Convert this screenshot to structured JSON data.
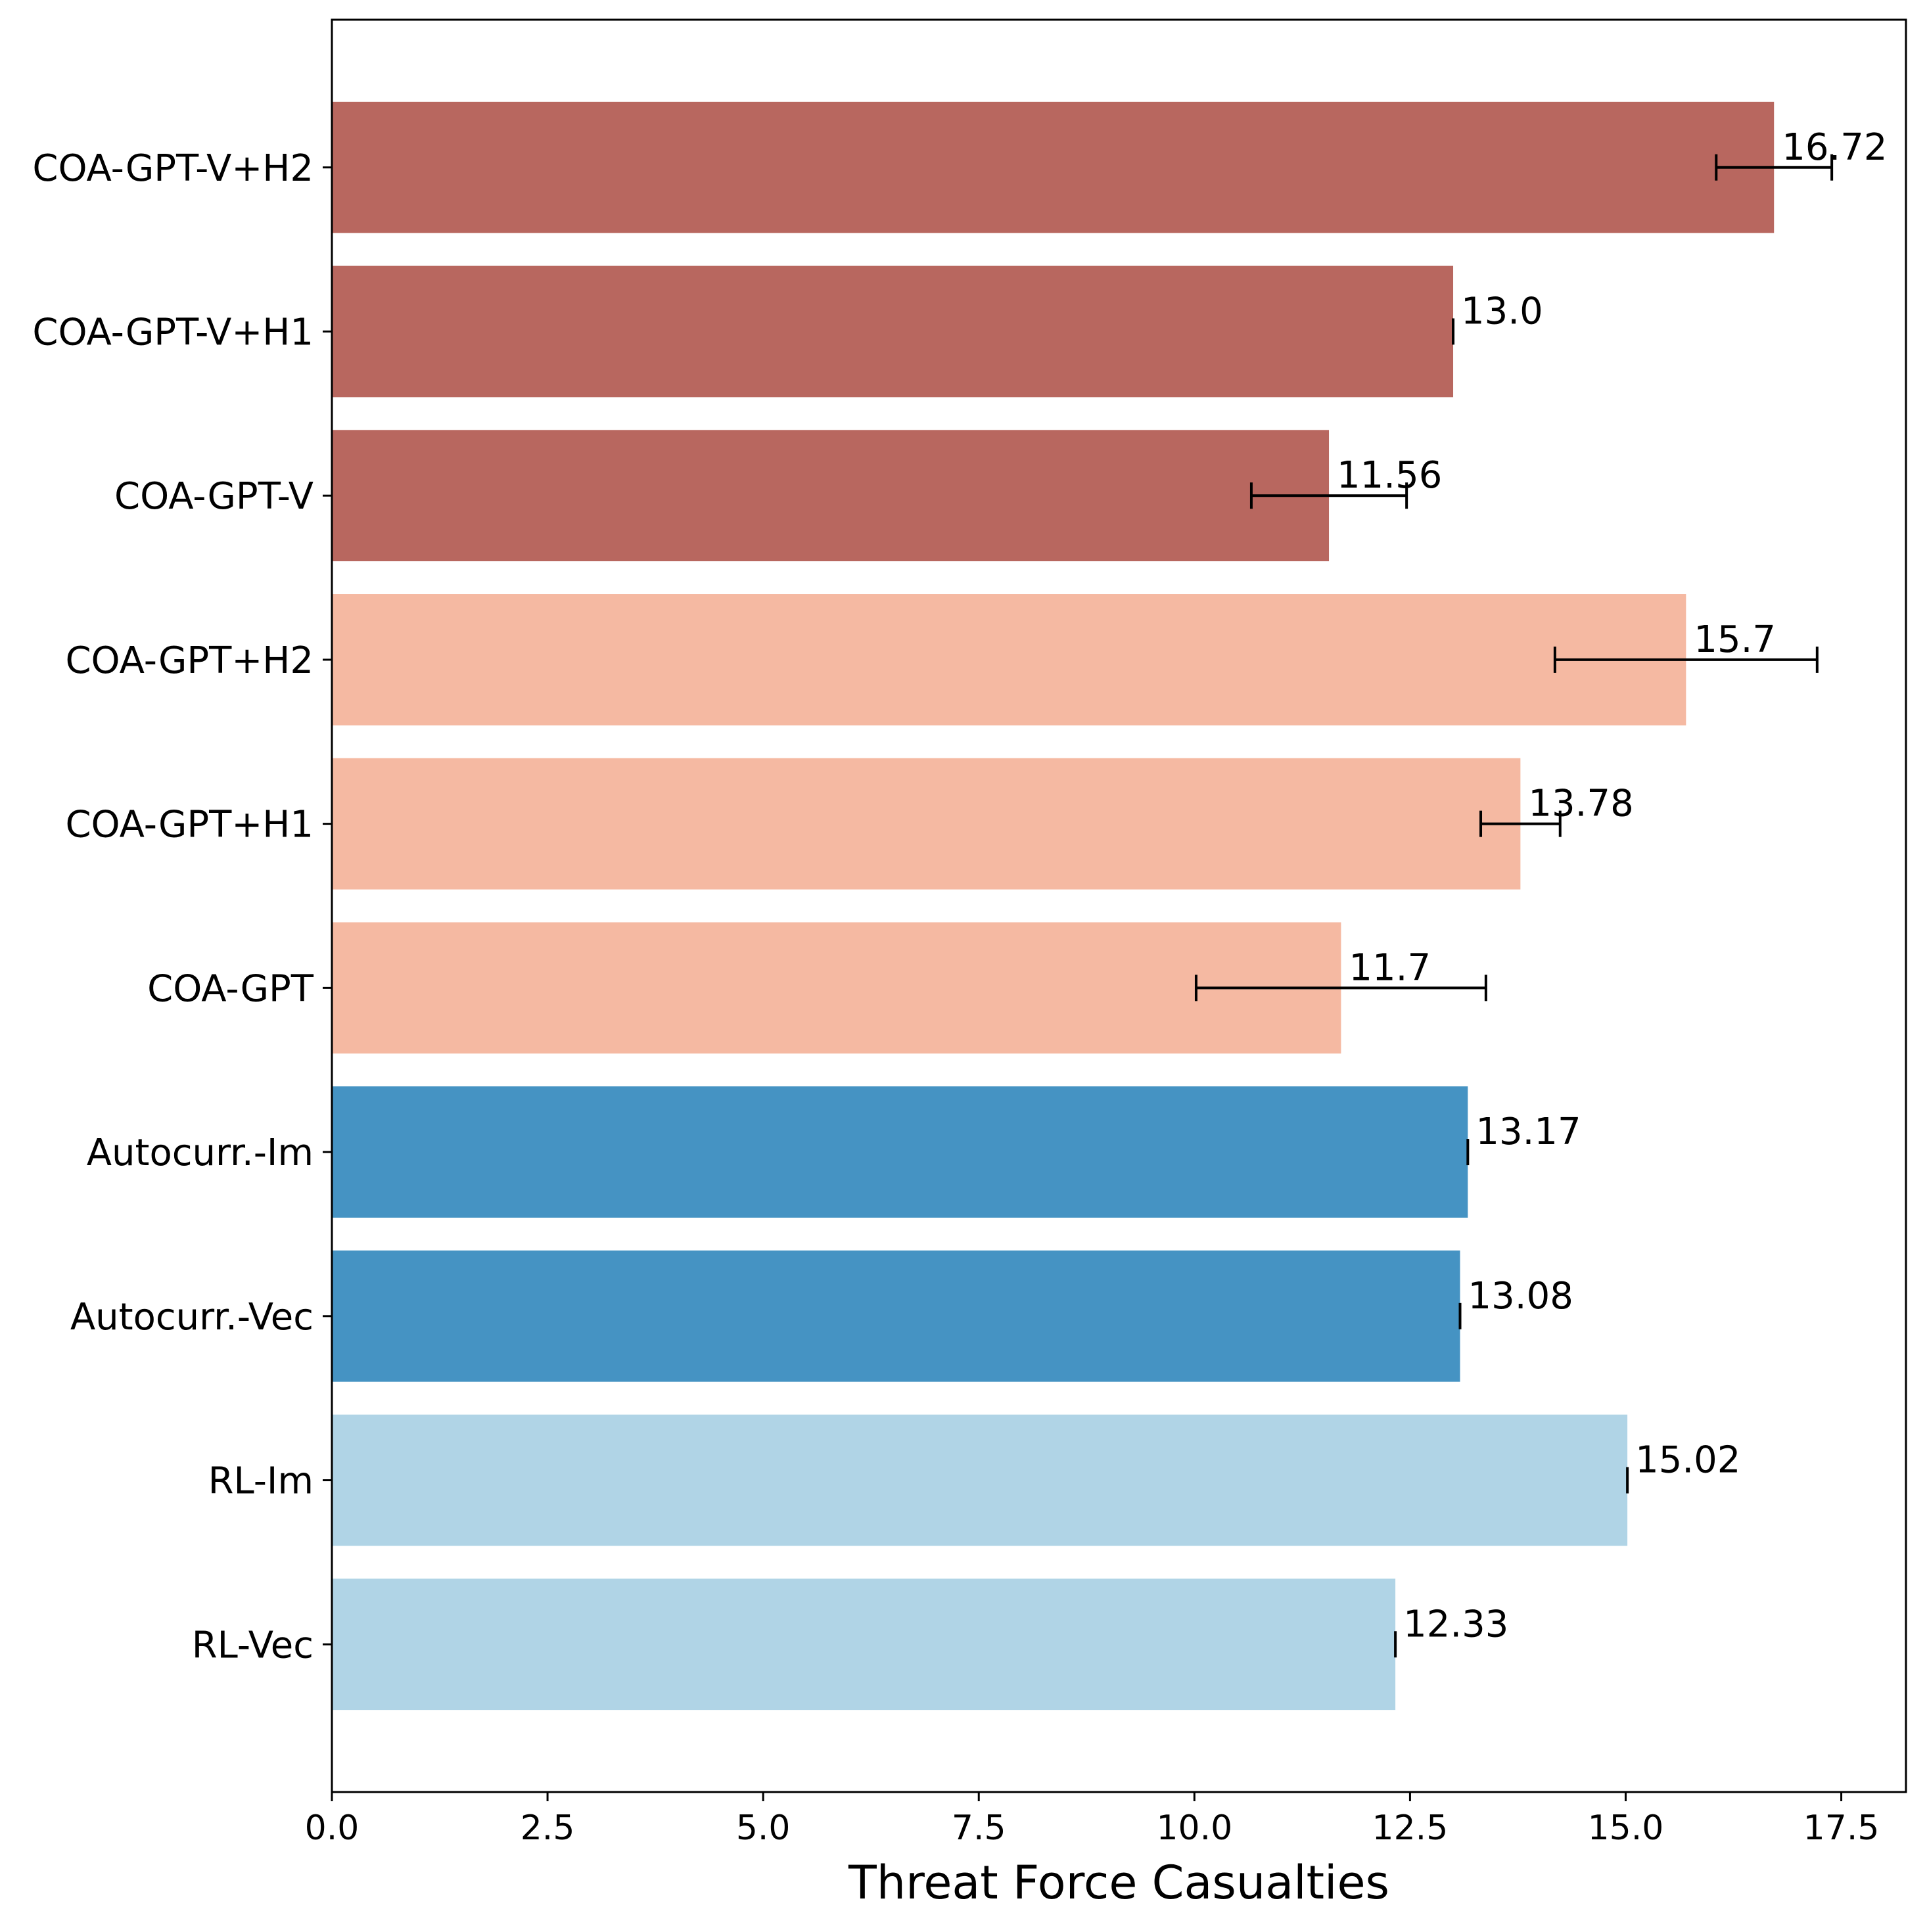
{
  "chart_data": {
    "type": "bar",
    "orientation": "horizontal",
    "title": "",
    "xlabel": "Threat Force Casualties",
    "ylabel": "",
    "xlim": [
      0,
      18.25
    ],
    "xticks": [
      0.0,
      2.5,
      5.0,
      7.5,
      10.0,
      12.5,
      15.0,
      17.5
    ],
    "xtick_labels": [
      "0.0",
      "2.5",
      "5.0",
      "7.5",
      "10.0",
      "12.5",
      "15.0",
      "17.5"
    ],
    "grid": false,
    "categories": [
      "COA-GPT-V+H2",
      "COA-GPT-V+H1",
      "COA-GPT-V",
      "COA-GPT+H2",
      "COA-GPT+H1",
      "COA-GPT",
      "Autocurr.-Im",
      "Autocurr.-Vec",
      "RL-Im",
      "RL-Vec"
    ],
    "values": [
      16.72,
      13.0,
      11.56,
      15.7,
      13.78,
      11.7,
      13.17,
      13.08,
      15.02,
      12.33
    ],
    "value_labels": [
      "16.72",
      "13.0",
      "11.56",
      "15.7",
      "13.78",
      "11.7",
      "13.17",
      "13.08",
      "15.02",
      "12.33"
    ],
    "errors": [
      0.67,
      0.0,
      0.9,
      1.52,
      0.46,
      1.68,
      0.0,
      0.0,
      0.0,
      0.0
    ],
    "colors": [
      "#b8675f",
      "#b8675f",
      "#b8675f",
      "#f5b9a2",
      "#f5b9a2",
      "#f5b9a2",
      "#4593c3",
      "#4593c3",
      "#b0d4e6",
      "#b0d4e6"
    ]
  }
}
